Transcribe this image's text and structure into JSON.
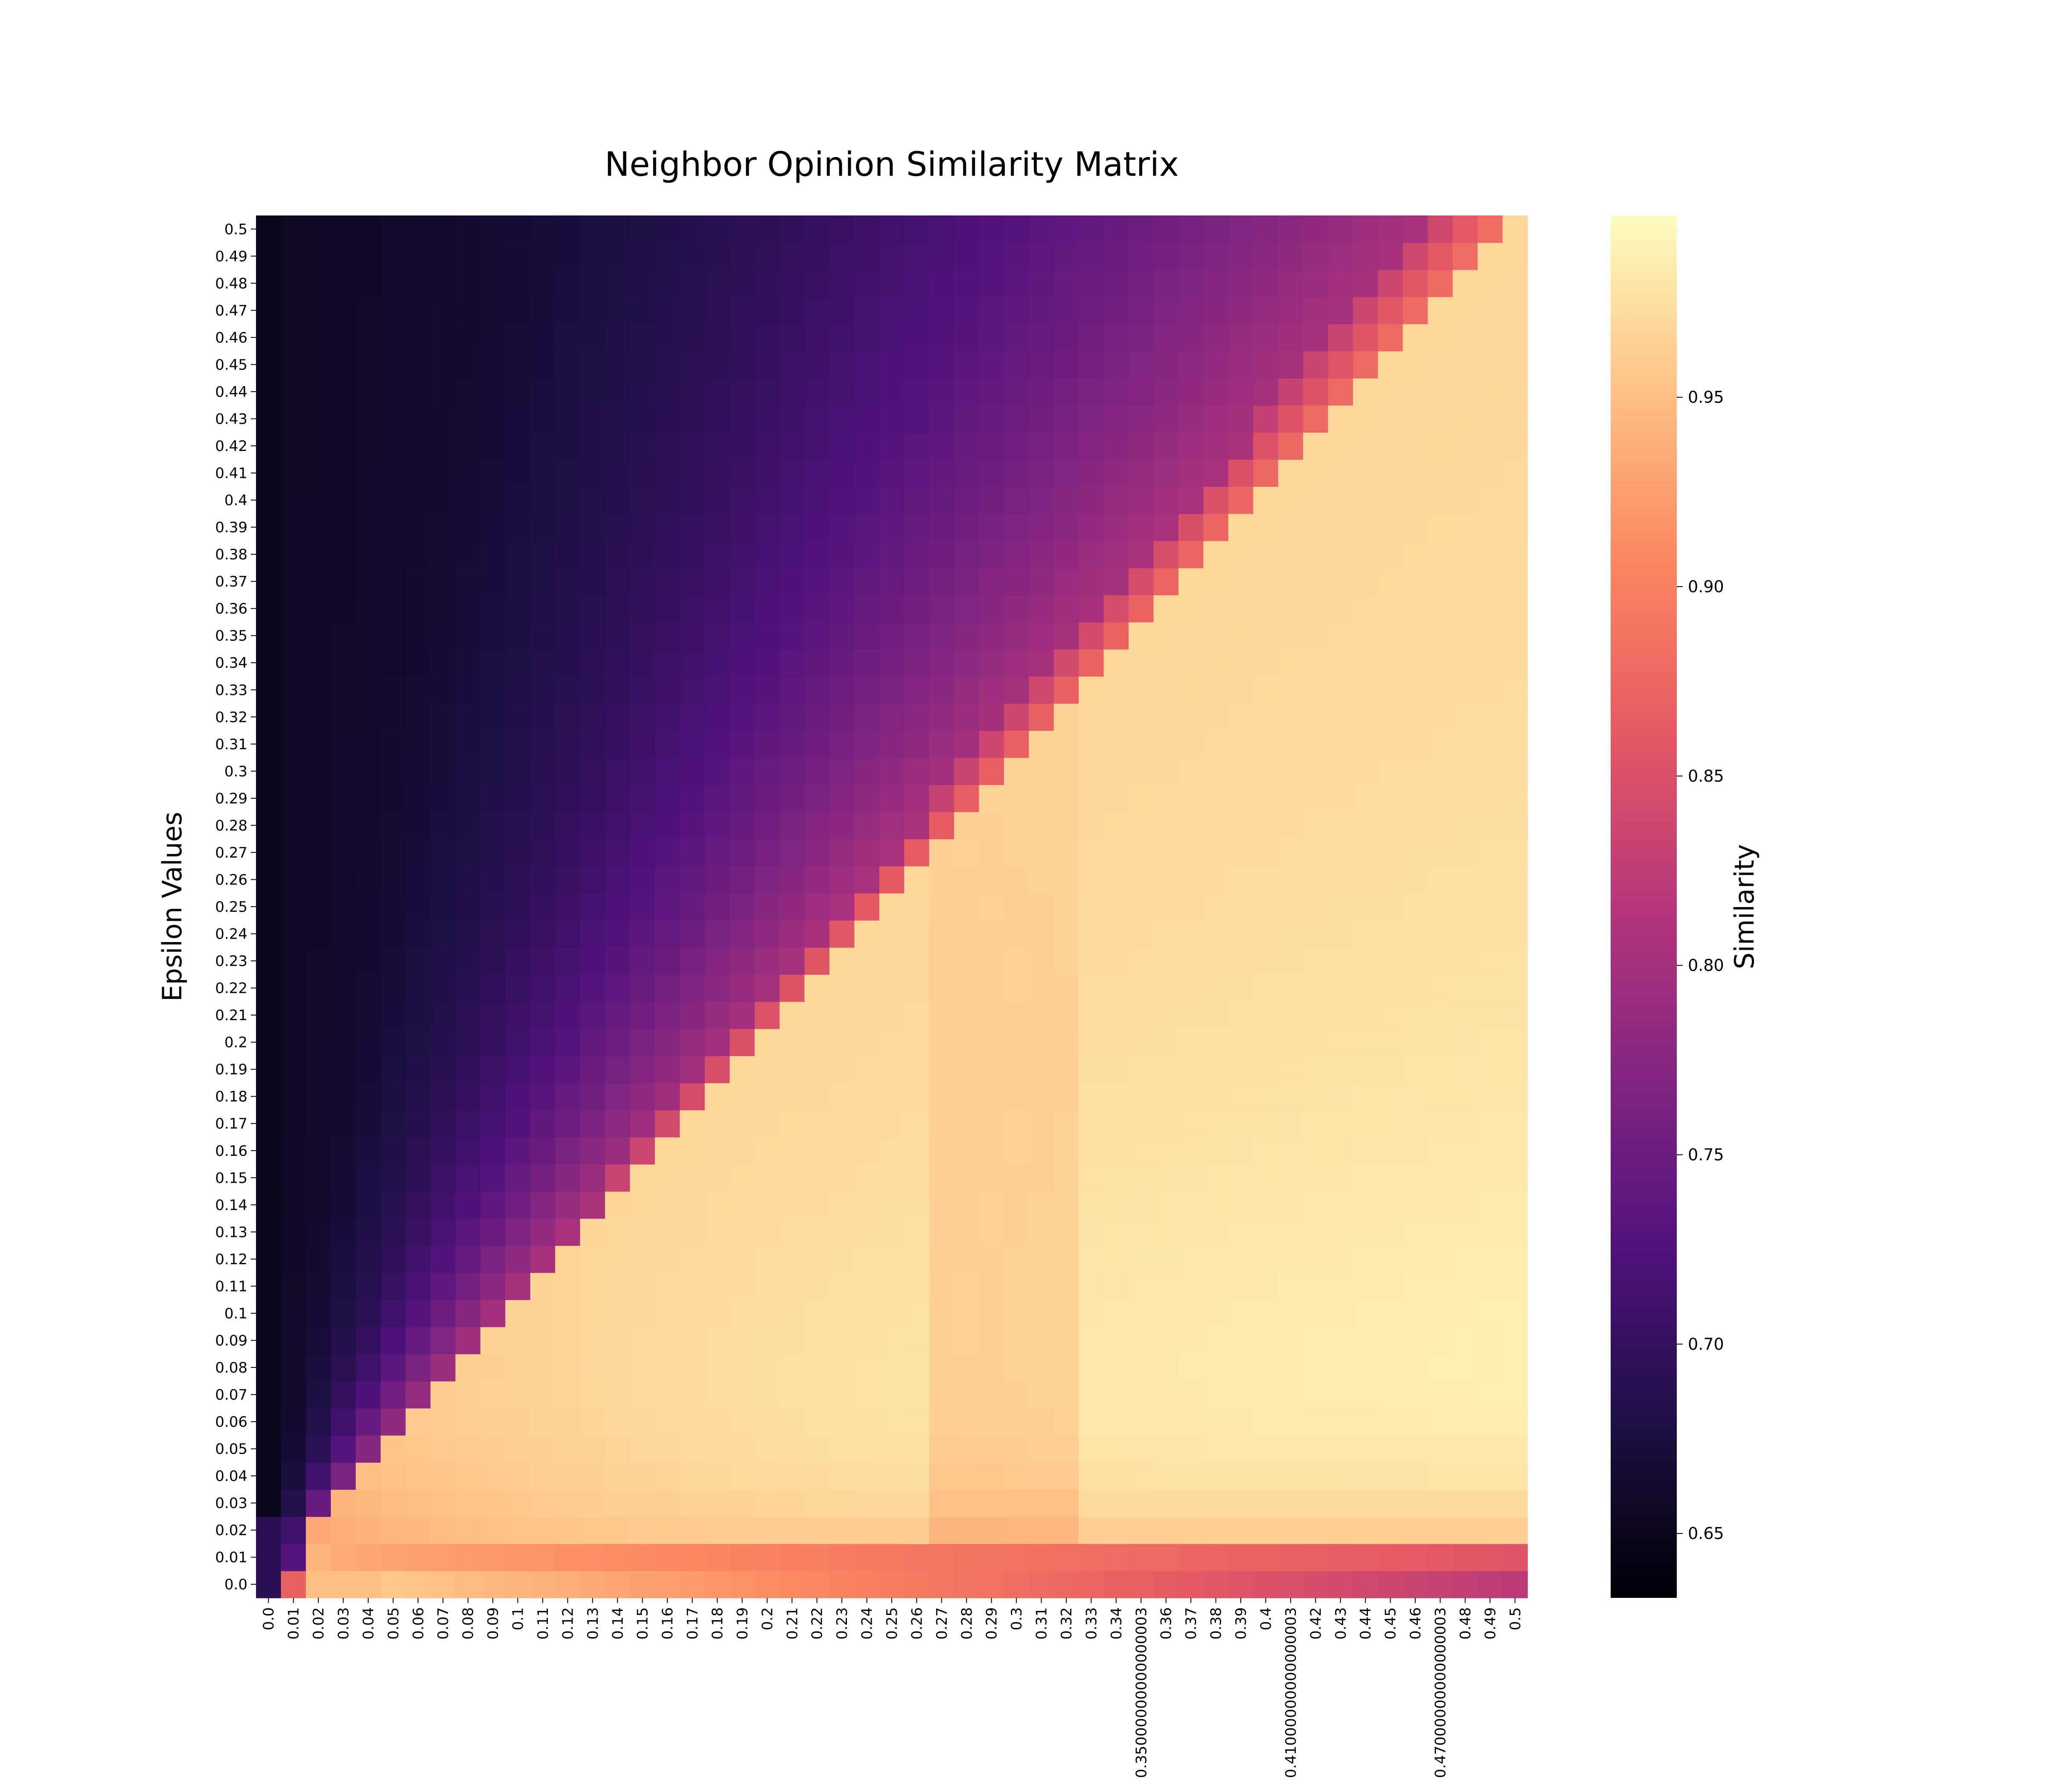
{
  "chart_data": {
    "type": "heatmap",
    "title": "Neighbor Opinion Similarity Matrix",
    "xlabel": "",
    "ylabel": "Epsilon Values",
    "colorbar_label": "Similarity",
    "colormap": "magma",
    "value_range": [
      0.633,
      0.998
    ],
    "colorbar_ticks": [
      "0.65",
      "0.70",
      "0.75",
      "0.80",
      "0.85",
      "0.90",
      "0.95"
    ],
    "x_tick_labels": [
      "0.0",
      "0.01",
      "0.02",
      "0.03",
      "0.04",
      "0.05",
      "0.06",
      "0.07",
      "0.08",
      "0.09",
      "0.1",
      "0.11",
      "0.12",
      "0.13",
      "0.14",
      "0.15",
      "0.16",
      "0.17",
      "0.18",
      "0.19",
      "0.2",
      "0.21",
      "0.22",
      "0.23",
      "0.24",
      "0.25",
      "0.26",
      "0.27",
      "0.28",
      "0.29",
      "0.3",
      "0.31",
      "0.32",
      "0.33",
      "0.34",
      "0.35000000000000003",
      "0.36",
      "0.37",
      "0.38",
      "0.39",
      "0.4",
      "0.41000000000000003",
      "0.42",
      "0.43",
      "0.44",
      "0.45",
      "0.46",
      "0.47000000000000003",
      "0.48",
      "0.49",
      "0.5"
    ],
    "y_tick_labels": [
      "0.0",
      "0.01",
      "0.02",
      "0.03",
      "0.04",
      "0.05",
      "0.06",
      "0.07",
      "0.08",
      "0.09",
      "0.1",
      "0.11",
      "0.12",
      "0.13",
      "0.14",
      "0.15",
      "0.16",
      "0.17",
      "0.18",
      "0.19",
      "0.2",
      "0.21",
      "0.22",
      "0.23",
      "0.24",
      "0.25",
      "0.26",
      "0.27",
      "0.28",
      "0.29",
      "0.3",
      "0.31",
      "0.32",
      "0.33",
      "0.34",
      "0.35",
      "0.36",
      "0.37",
      "0.38",
      "0.39",
      "0.4",
      "0.41",
      "0.42",
      "0.43",
      "0.44",
      "0.45",
      "0.46",
      "0.47",
      "0.48",
      "0.49",
      "0.5"
    ],
    "grid": false,
    "colorbar_position": "right"
  }
}
